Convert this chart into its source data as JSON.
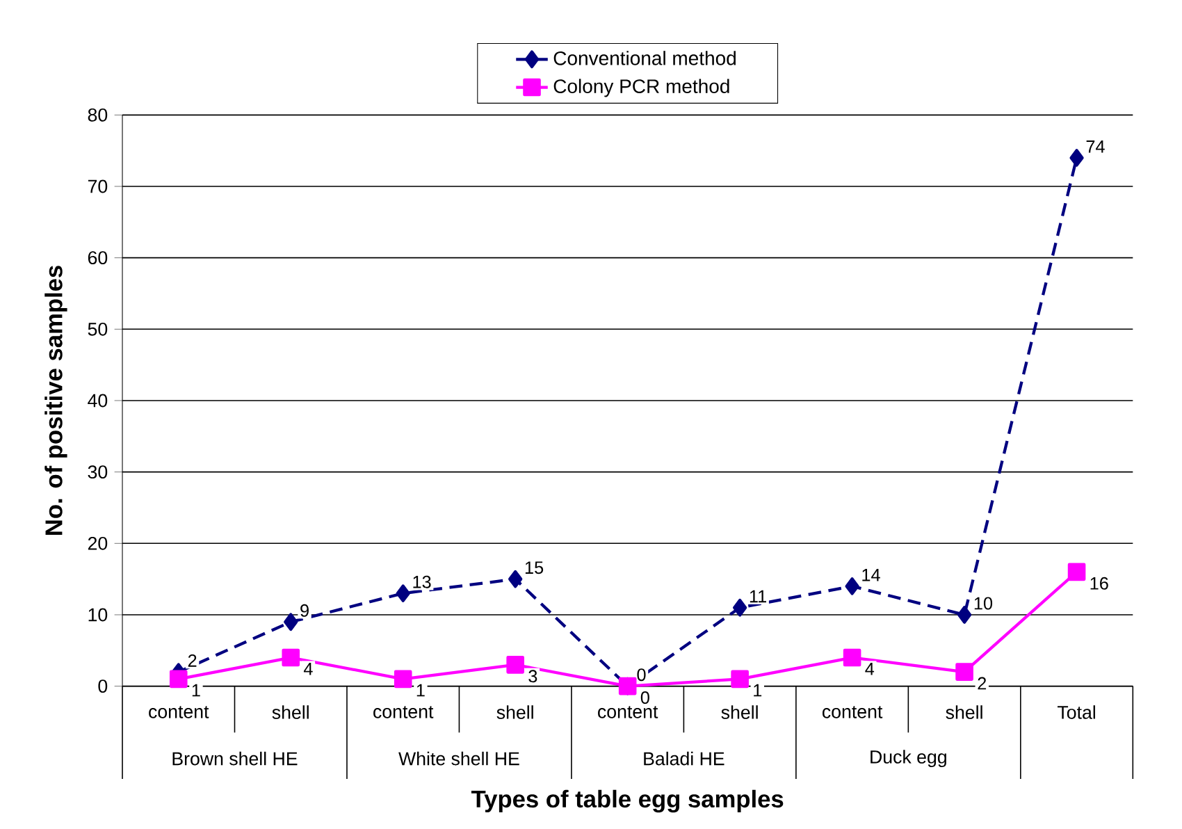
{
  "chart_data": {
    "type": "line",
    "xlabel": "Types of table egg samples",
    "ylabel": "No. of positive samples",
    "categories": [
      "content",
      "shell",
      "content",
      "shell",
      "content",
      "shell",
      "content",
      "shell",
      "Total"
    ],
    "annotations": [
      "Brown shell HE",
      "White shell HE",
      "Baladi HE",
      "Duck egg"
    ],
    "series": [
      {
        "name": "Conventional method",
        "color": "#000080",
        "marker": "diamond",
        "line_style": "dashed",
        "values": [
          2,
          9,
          13,
          15,
          0,
          11,
          14,
          10,
          74
        ]
      },
      {
        "name": "Colony PCR method",
        "color": "#ff00ff",
        "marker": "square",
        "line_style": "solid",
        "values": [
          1,
          4,
          1,
          3,
          0,
          1,
          4,
          2,
          16
        ]
      }
    ],
    "ylim": [
      0,
      80
    ],
    "yticks": [
      0,
      10,
      20,
      30,
      40,
      50,
      60,
      70,
      80
    ],
    "grid": "y",
    "legend": "top",
    "data_labels": true
  }
}
